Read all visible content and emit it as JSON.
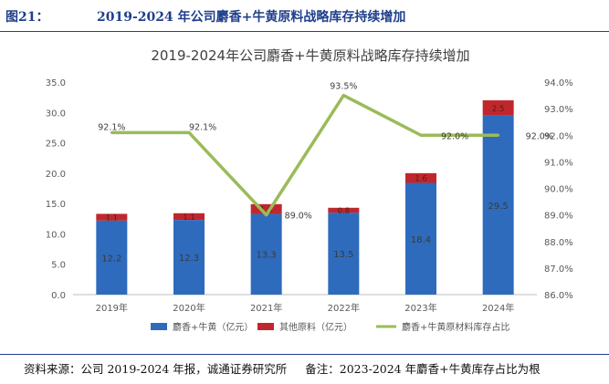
{
  "figure": {
    "number": "图21：",
    "title": "2019-2024 年公司麝香+牛黄原料战略库存持续增加"
  },
  "source": {
    "text": "资料来源：公司 2019-2024 年报，诚通证券研究所",
    "note": "备注：2023-2024 年麝香+牛黄库存占比为根"
  },
  "chart_data": {
    "type": "bar",
    "title": "2019-2024年公司麝香+牛黄原料战略库存持续增加",
    "categories": [
      "2019年",
      "2020年",
      "2021年",
      "2022年",
      "2023年",
      "2024年"
    ],
    "series": [
      {
        "name": "麝香+牛黄（亿元）",
        "kind": "bar",
        "axis": "left",
        "color": "#2e6bbd",
        "values": [
          12.2,
          12.3,
          13.3,
          13.5,
          18.4,
          29.5
        ],
        "labels": [
          "12.2",
          "12.3",
          "13.3",
          "13.5",
          "18.4",
          "29.5"
        ]
      },
      {
        "name": "其他原料（亿元）",
        "kind": "bar",
        "axis": "left",
        "color": "#c0272d",
        "values": [
          1.1,
          1.1,
          1.6,
          0.8,
          1.6,
          2.5
        ],
        "labels": [
          "1.1",
          "1.1",
          "1.6",
          "0.8",
          "1.6",
          "2.5"
        ]
      },
      {
        "name": "麝香+牛黄原材料库存占比",
        "kind": "line",
        "axis": "right",
        "color": "#9bbb59",
        "values": [
          92.1,
          92.1,
          89.0,
          93.5,
          92.0,
          92.0
        ],
        "labels": [
          "92.1%",
          "92.1%",
          "89.0%",
          "93.5%",
          "92.0%",
          "92.0%"
        ]
      }
    ],
    "y_left": {
      "min": 0,
      "max": 35,
      "ticks": [
        "0.0",
        "5.0",
        "10.0",
        "15.0",
        "20.0",
        "25.0",
        "30.0",
        "35.0"
      ]
    },
    "y_right": {
      "min": 86,
      "max": 94,
      "ticks": [
        "86.0%",
        "87.0%",
        "88.0%",
        "89.0%",
        "90.0%",
        "91.0%",
        "92.0%",
        "93.0%",
        "94.0%"
      ]
    },
    "stacked": true,
    "grid": false,
    "legend_position": "bottom"
  }
}
